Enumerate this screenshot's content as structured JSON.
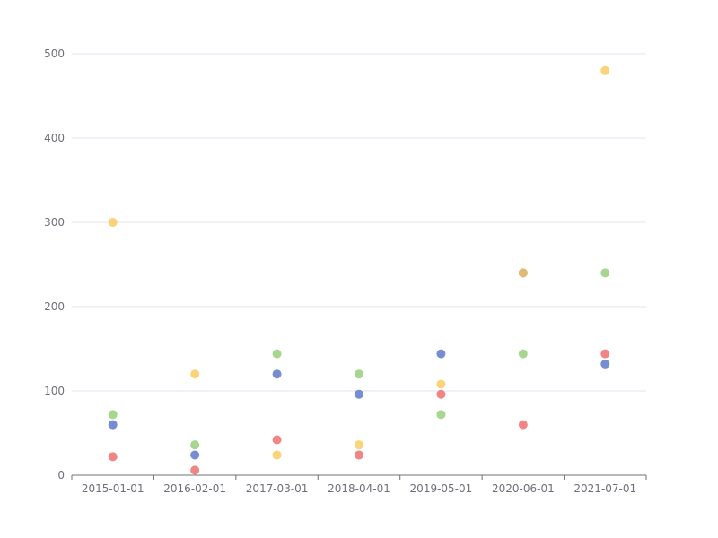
{
  "chart_data": {
    "type": "scatter",
    "categories": [
      "2015-01-01",
      "2016-02-01",
      "2017-03-01",
      "2018-04-01",
      "2019-05-01",
      "2020-06-01",
      "2021-07-01"
    ],
    "ylim": [
      0,
      500
    ],
    "yticks": [
      0,
      100,
      200,
      300,
      400,
      500
    ],
    "grid": true,
    "series": [
      {
        "color": "#5470c6",
        "values": [
          60,
          24,
          120,
          96,
          144,
          240,
          132
        ]
      },
      {
        "color": "#91cc75",
        "values": [
          72,
          36,
          144,
          120,
          72,
          144,
          240
        ]
      },
      {
        "color": "#fac858",
        "values": [
          300,
          120,
          24,
          36,
          108,
          240,
          480
        ]
      },
      {
        "color": "#ee6666",
        "values": [
          22,
          6,
          42,
          24,
          96,
          60,
          144
        ]
      }
    ]
  }
}
